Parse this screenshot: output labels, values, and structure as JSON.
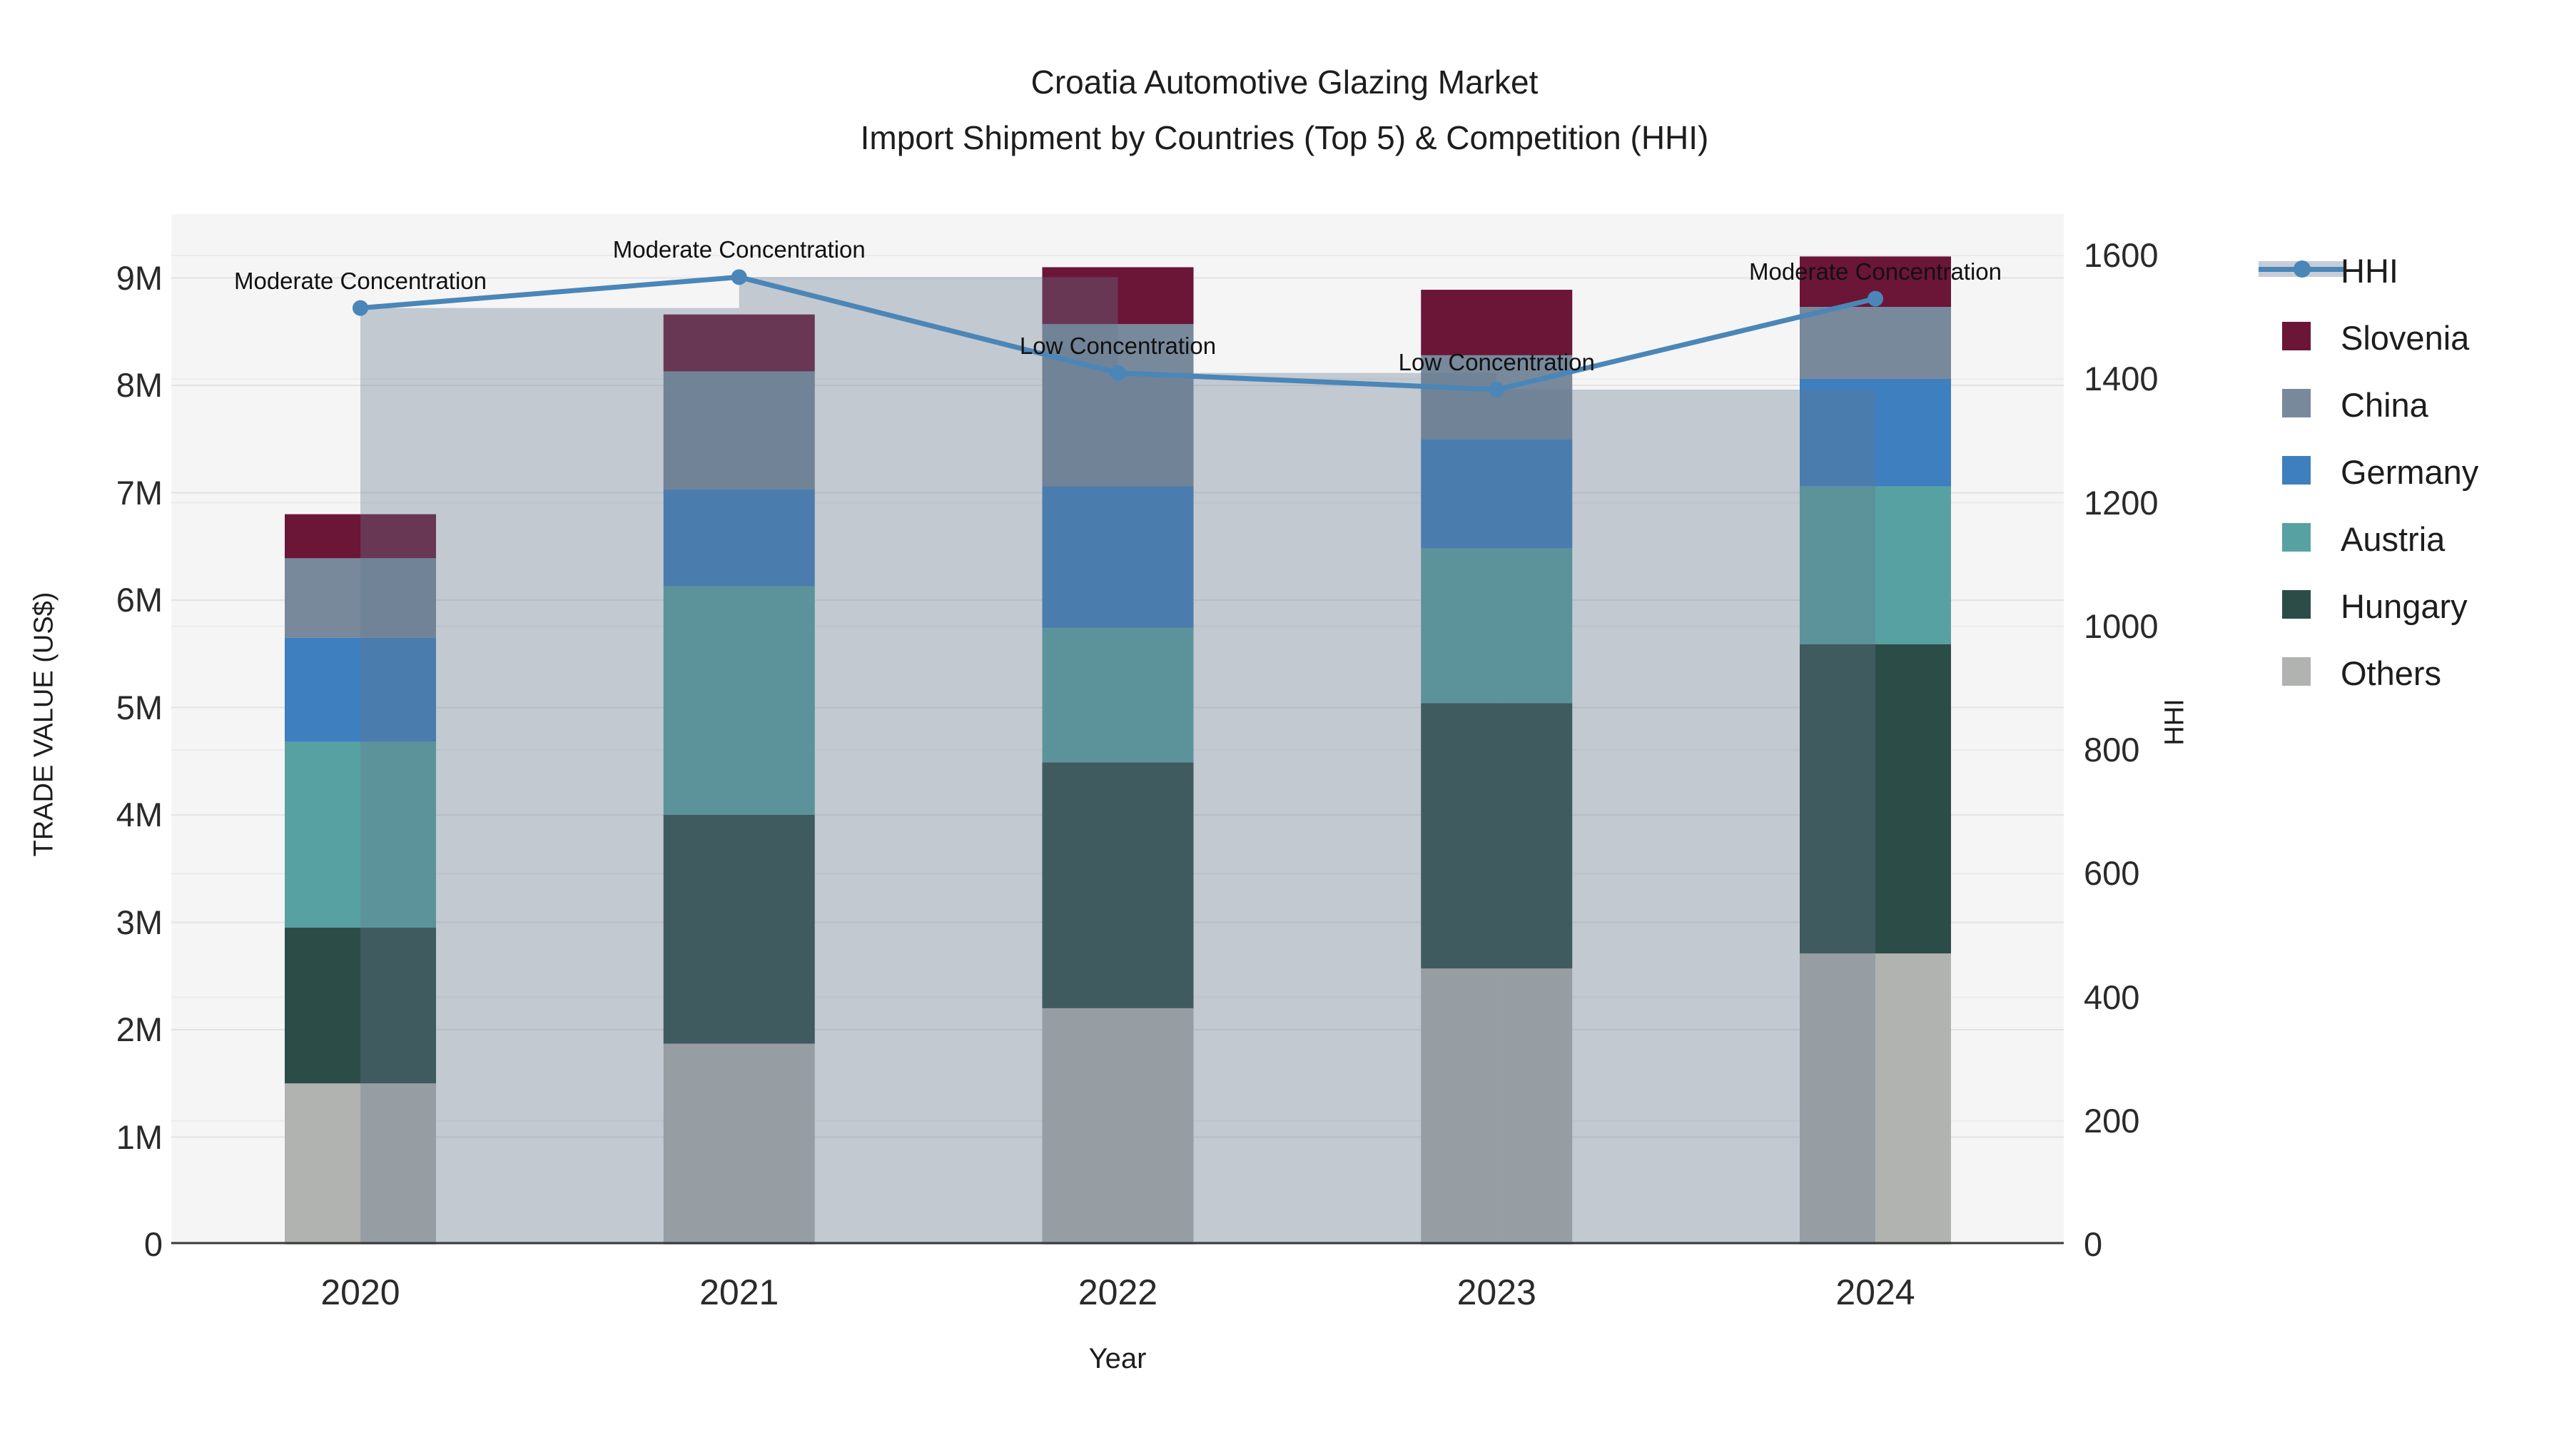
{
  "title": {
    "line1": "Croatia Automotive Glazing Market",
    "line2": "Import Shipment by Countries (Top 5) & Competition (HHI)"
  },
  "axes": {
    "left": {
      "title": "TRADE VALUE (US$)",
      "ticks": [
        "0",
        "1M",
        "2M",
        "3M",
        "4M",
        "5M",
        "6M",
        "7M",
        "8M",
        "9M"
      ]
    },
    "right": {
      "title": "HHI",
      "ticks": [
        "0",
        "200",
        "400",
        "600",
        "800",
        "1000",
        "1200",
        "1400",
        "1600"
      ]
    },
    "x": {
      "title": "Year",
      "ticks": [
        "2020",
        "2021",
        "2022",
        "2023",
        "2024"
      ]
    }
  },
  "legend": {
    "items": [
      {
        "label": "HHI",
        "type": "line",
        "color": "#4a86b8",
        "band": "#c6ccd8"
      },
      {
        "label": "Slovenia",
        "type": "chip",
        "color": "#6b1537"
      },
      {
        "label": "China",
        "type": "chip",
        "color": "#78899c"
      },
      {
        "label": "Germany",
        "type": "chip",
        "color": "#3e7fc0"
      },
      {
        "label": "Austria",
        "type": "chip",
        "color": "#58a1a3"
      },
      {
        "label": "Hungary",
        "type": "chip",
        "color": "#2b4c47"
      },
      {
        "label": "Others",
        "type": "chip",
        "color": "#b1b3b1"
      }
    ]
  },
  "annotations": [
    {
      "year": "2020",
      "text": "Moderate Concentration"
    },
    {
      "year": "2021",
      "text": "Moderate Concentration"
    },
    {
      "year": "2022",
      "text": "Low Concentration"
    },
    {
      "year": "2023",
      "text": "Low Concentration"
    },
    {
      "year": "2024",
      "text": "Moderate Concentration"
    }
  ],
  "chart_data": {
    "type": "bar+line dual-axis (stacked bars on left axis, HHI line with backing bars on right axis)",
    "categories": [
      "2020",
      "2021",
      "2022",
      "2023",
      "2024"
    ],
    "series": [
      {
        "name": "Others",
        "axis": "left",
        "values": [
          1500000,
          1870000,
          2200000,
          2570000,
          2710000
        ]
      },
      {
        "name": "Hungary",
        "axis": "left",
        "values": [
          1450000,
          2130000,
          2290000,
          2470000,
          2880000
        ]
      },
      {
        "name": "Austria",
        "axis": "left",
        "values": [
          1730000,
          2130000,
          1250000,
          1440000,
          1470000
        ]
      },
      {
        "name": "Germany",
        "axis": "left",
        "values": [
          970000,
          900000,
          1320000,
          1020000,
          1000000
        ]
      },
      {
        "name": "China",
        "axis": "left",
        "values": [
          740000,
          1100000,
          1510000,
          780000,
          670000
        ]
      },
      {
        "name": "Slovenia",
        "axis": "left",
        "values": [
          410000,
          530000,
          530000,
          610000,
          470000
        ]
      }
    ],
    "totals": [
      6800000,
      8660000,
      9100000,
      8890000,
      9200000
    ],
    "hhi": {
      "name": "HHI",
      "axis": "right",
      "values": [
        1515,
        1565,
        1410,
        1383,
        1530
      ]
    },
    "xlabel": "Year",
    "ylabel_left": "TRADE VALUE (US$)",
    "ylabel_right": "HHI",
    "ylim_left": [
      0,
      9580000
    ],
    "ylim_right": [
      0,
      1664
    ],
    "grid": "horizontal major gridlines for both y axes",
    "legend_position": "right-top outside plot",
    "plot_background": "#f5f5f5"
  },
  "colors": {
    "slovenia": "#6b1537",
    "china": "#78899c",
    "germany": "#3e7fc0",
    "austria": "#58a1a3",
    "hungary": "#2b4c47",
    "others": "#b1b3b1",
    "hhi_line": "#4a86b8",
    "hhi_backing_bar": "rgba(101,121,140,0.35)",
    "plot_bg": "#f5f5f5",
    "grid_left": "#e2e2e2",
    "grid_right": "#ebebeb",
    "axis_line": "#3b3b3b"
  }
}
